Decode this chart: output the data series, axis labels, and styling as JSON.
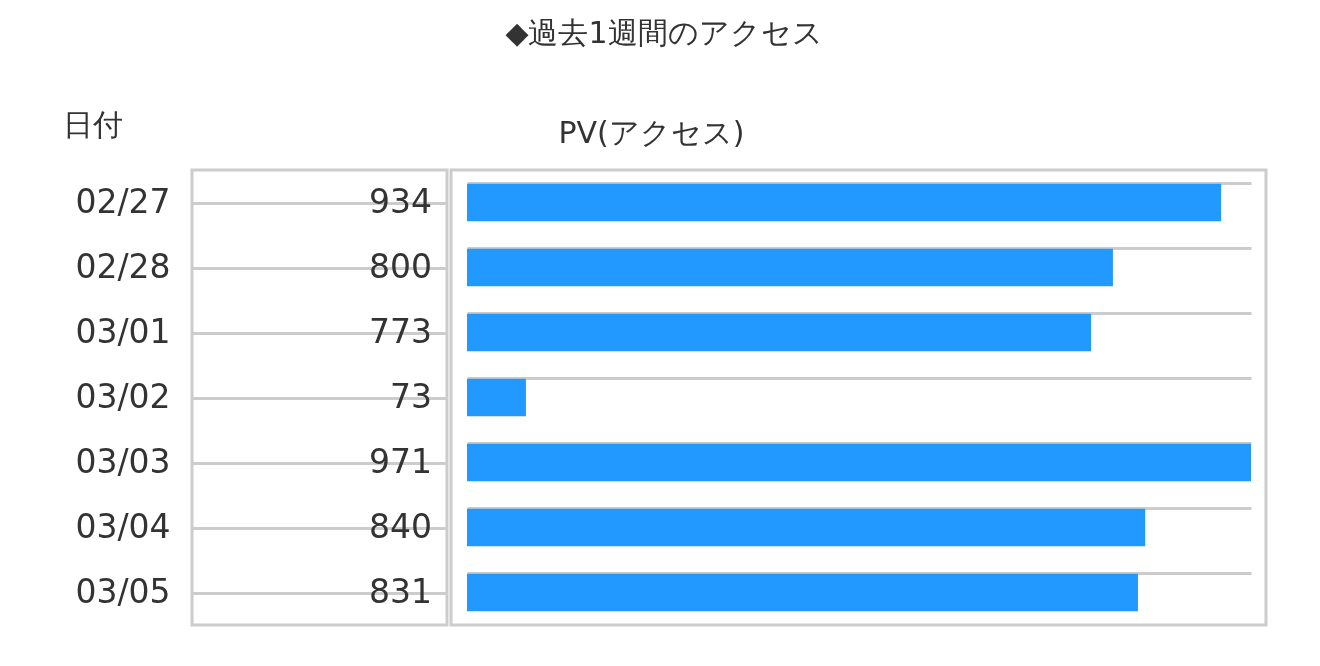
{
  "chart_data": {
    "type": "bar",
    "orientation": "horizontal",
    "title": "◆過去1週間のアクセス",
    "xlabel": "PV(アクセス)",
    "ylabel": "日付",
    "categories": [
      "02/27",
      "02/28",
      "03/01",
      "03/02",
      "03/03",
      "03/04",
      "03/05"
    ],
    "values": [
      934,
      800,
      773,
      73,
      971,
      840,
      831
    ],
    "color": "#2299ff",
    "data_labels": true,
    "grid": "y"
  }
}
